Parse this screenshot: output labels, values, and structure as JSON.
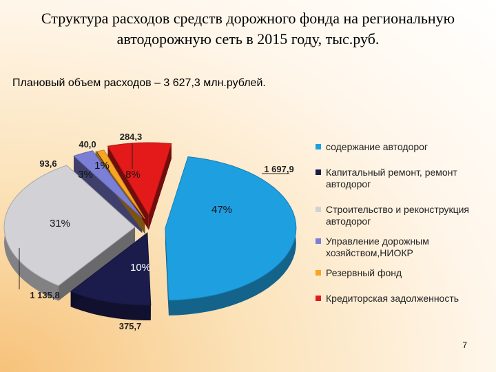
{
  "title": "Структура расходов средств дорожного фонда на региональную автодорожную сеть в 2015 году, тыс.руб.",
  "subtitle": "Плановый объем расходов – 3 627,3 млн.рублей.",
  "page_number": "7",
  "chart_data": {
    "type": "pie",
    "title": "",
    "series": [
      {
        "name": "содержание автодорог",
        "value": 1697.9,
        "value_label": "1 697,9",
        "percent_label": "47%",
        "color": "#1e9fe0"
      },
      {
        "name": "Капитальный ремонт, ремонт автодорог",
        "value": 375.7,
        "value_label": "375,7",
        "percent_label": "10%",
        "color": "#1b1c4c"
      },
      {
        "name": "Строительство и реконструкция автодорог",
        "value": 1135.8,
        "value_label": "1 135,8",
        "percent_label": "31%",
        "color": "#d2d2d6"
      },
      {
        "name": "Управление дорожным хозяйством,НИОКР",
        "value": 93.6,
        "value_label": "93,6",
        "percent_label": "3%",
        "color": "#7b7fd6"
      },
      {
        "name": "Резервный фонд",
        "value": 40.0,
        "value_label": "40,0",
        "percent_label": "1%",
        "color": "#f6a623"
      },
      {
        "name": "Кредиторская задолженность",
        "value": 284.3,
        "value_label": "284,3",
        "percent_label": "8%",
        "color": "#e41a1a"
      }
    ],
    "legend_position": "right"
  }
}
